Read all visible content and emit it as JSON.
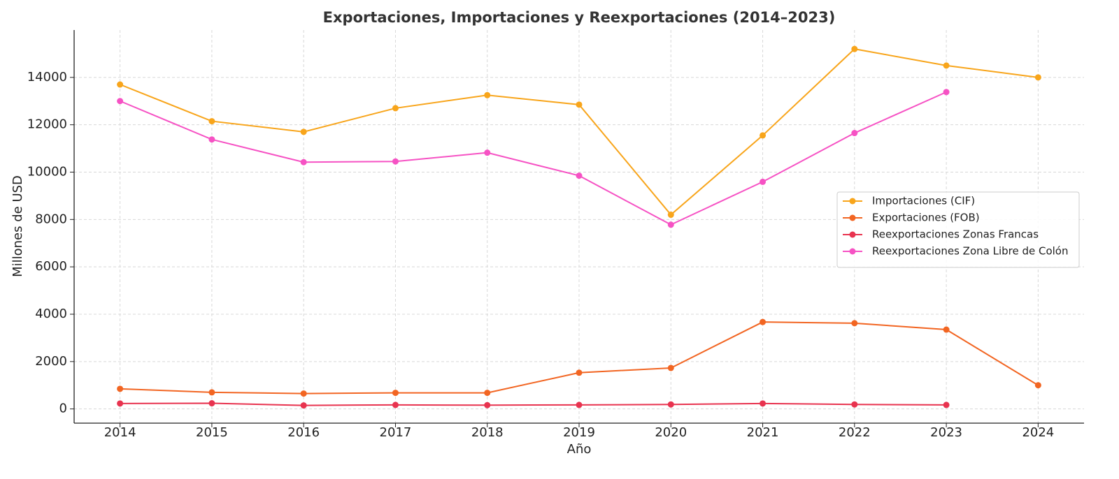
{
  "chart_data": {
    "type": "line",
    "title": "Exportaciones, Importaciones y Reexportaciones (2014–2023)",
    "x_label": "Año",
    "y_label": "Millones de USD",
    "x": [
      2014,
      2015,
      2016,
      2017,
      2018,
      2019,
      2020,
      2021,
      2022,
      2023,
      2024
    ],
    "series": [
      {
        "name": "Importaciones (CIF)",
        "color": "#f8a51b",
        "values": [
          13700,
          12150,
          11700,
          12700,
          13250,
          12850,
          8200,
          11550,
          15200,
          14500,
          14000
        ]
      },
      {
        "name": "Exportaciones (FOB)",
        "color": "#f26522",
        "values": [
          850,
          700,
          650,
          680,
          680,
          1530,
          1730,
          3670,
          3620,
          3350,
          1000
        ]
      },
      {
        "name": "Reexportaciones Zonas Francas",
        "color": "#e8334f",
        "values": [
          230,
          240,
          150,
          170,
          160,
          170,
          190,
          230,
          190,
          170,
          null
        ]
      },
      {
        "name": "Reexportaciones Zona Libre de Colón",
        "color": "#f652c4",
        "values": [
          13000,
          11380,
          10420,
          10450,
          10820,
          9850,
          7780,
          9590,
          11650,
          13380,
          null
        ]
      }
    ],
    "xlim": [
      2013.5,
      2024.5
    ],
    "xticks": [
      2014,
      2015,
      2016,
      2017,
      2018,
      2019,
      2020,
      2021,
      2022,
      2023,
      2024
    ],
    "ylim": [
      -600,
      16000
    ],
    "yticks": [
      0,
      2000,
      4000,
      6000,
      8000,
      10000,
      12000,
      14000
    ],
    "grid": true,
    "legend": "right"
  }
}
